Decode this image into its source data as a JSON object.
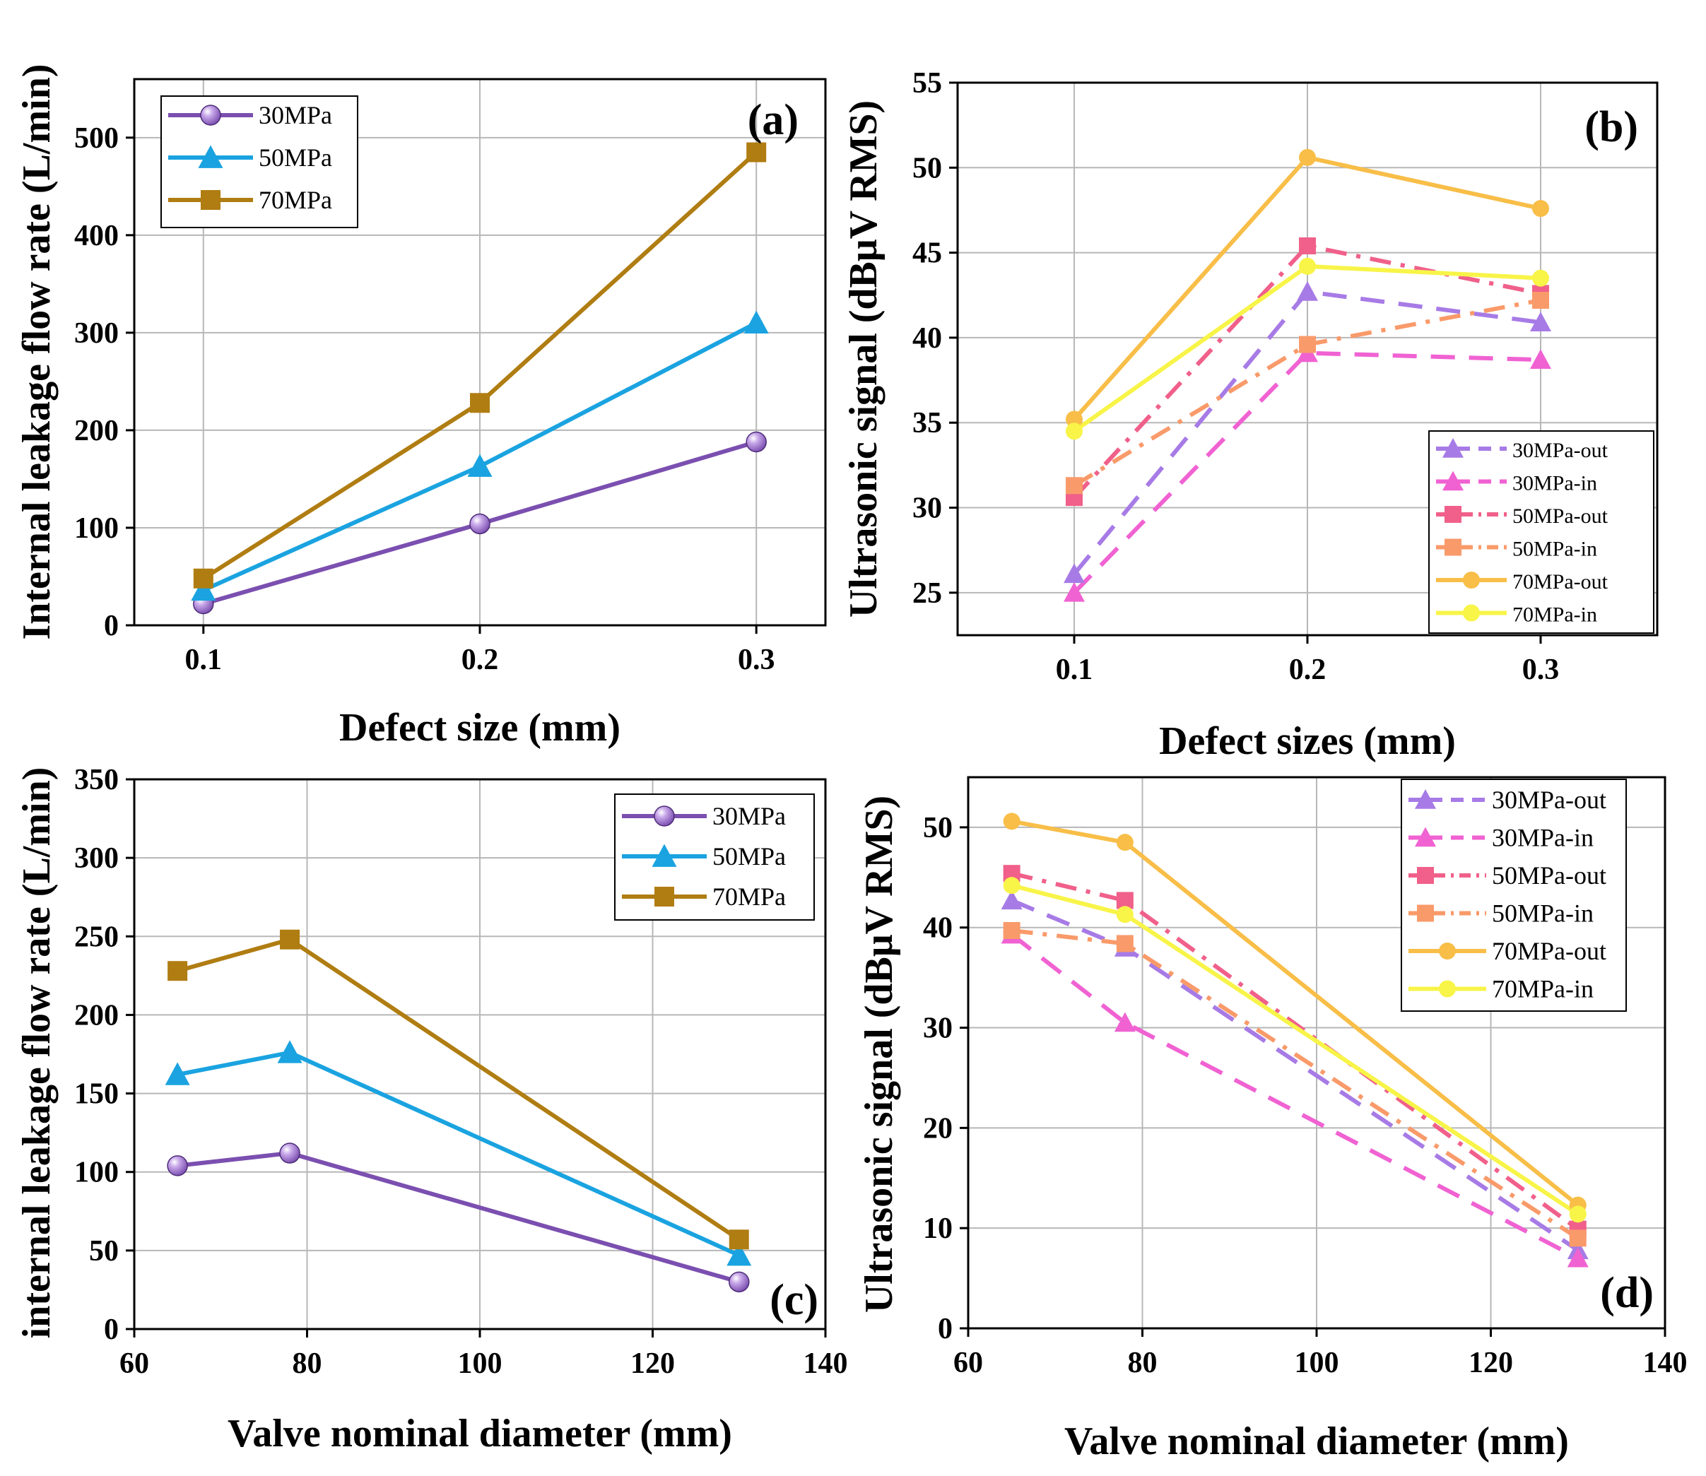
{
  "figure": {
    "background": "#ffffff"
  },
  "series_styles": {
    "30MPa": {
      "color": "#7b4fb0",
      "marker": "sphere",
      "dash": "solid"
    },
    "50MPa": {
      "color": "#1aa3e0",
      "marker": "triangle",
      "dash": "solid"
    },
    "70MPa": {
      "color": "#b07d12",
      "marker": "square",
      "dash": "solid"
    },
    "30MPa-out": {
      "color": "#a77be6",
      "marker": "triangle",
      "dash": "dash"
    },
    "30MPa-in": {
      "color": "#f062d2",
      "marker": "triangle",
      "dash": "dash"
    },
    "50MPa-out": {
      "color": "#f0608a",
      "marker": "square",
      "dash": "dashdot"
    },
    "50MPa-in": {
      "color": "#f99a6a",
      "marker": "square",
      "dash": "dashdot"
    },
    "70MPa-out": {
      "color": "#f8be48",
      "marker": "circle",
      "dash": "solid"
    },
    "70MPa-in": {
      "color": "#f8f448",
      "marker": "circle",
      "dash": "solid"
    }
  },
  "chart_data": [
    {
      "id": "a",
      "type": "line",
      "panel_label": "(a)",
      "xlabel": "Defect size (mm)",
      "ylabel": "Internal leakage flow rate (L/min)",
      "x": [
        0.1,
        0.2,
        0.3
      ],
      "xlim": [
        0.075,
        0.325
      ],
      "ylim": [
        0,
        560
      ],
      "xticks": [
        0.1,
        0.2,
        0.3
      ],
      "xtick_labels": [
        "0.1",
        "0.2",
        "0.3"
      ],
      "yticks": [
        0,
        100,
        200,
        300,
        400,
        500
      ],
      "ytick_labels": [
        "0",
        "100",
        "200",
        "300",
        "400",
        "500"
      ],
      "grid": true,
      "legend": "top-left",
      "series": [
        {
          "name": "30MPa",
          "values": [
            22,
            104,
            188
          ]
        },
        {
          "name": "50MPa",
          "values": [
            36,
            163,
            310
          ]
        },
        {
          "name": "70MPa",
          "values": [
            48,
            228,
            485
          ]
        }
      ]
    },
    {
      "id": "b",
      "type": "line",
      "panel_label": "(b)",
      "xlabel": "Defect sizes (mm)",
      "ylabel": "Ultrasonic signal (dBμV RMS)",
      "x": [
        0.1,
        0.2,
        0.3
      ],
      "xlim": [
        0.05,
        0.35
      ],
      "ylim": [
        22.5,
        55
      ],
      "xticks": [
        0.1,
        0.2,
        0.3
      ],
      "xtick_labels": [
        "0.1",
        "0.2",
        "0.3"
      ],
      "yticks": [
        25,
        30,
        35,
        40,
        45,
        50,
        55
      ],
      "ytick_labels": [
        "25",
        "30",
        "35",
        "40",
        "45",
        "50",
        "55"
      ],
      "grid": true,
      "legend": "bottom-right",
      "series": [
        {
          "name": "30MPa-out",
          "values": [
            26.1,
            42.7,
            40.9
          ]
        },
        {
          "name": "30MPa-in",
          "values": [
            25.0,
            39.1,
            38.7
          ]
        },
        {
          "name": "50MPa-out",
          "values": [
            30.6,
            45.4,
            42.6
          ]
        },
        {
          "name": "50MPa-in",
          "values": [
            31.3,
            39.6,
            42.2
          ]
        },
        {
          "name": "70MPa-out",
          "values": [
            35.2,
            50.6,
            47.6
          ]
        },
        {
          "name": "70MPa-in",
          "values": [
            34.5,
            44.2,
            43.5
          ]
        }
      ]
    },
    {
      "id": "c",
      "type": "line",
      "panel_label": "(c)",
      "xlabel": "Valve nominal diameter (mm)",
      "ylabel": "internal leakage flow rate (L/min)",
      "x": [
        65,
        78,
        130
      ],
      "xlim": [
        60,
        140
      ],
      "ylim": [
        0,
        350
      ],
      "xticks": [
        60,
        80,
        100,
        120,
        140
      ],
      "xtick_labels": [
        "60",
        "80",
        "100",
        "120",
        "140"
      ],
      "yticks": [
        0,
        50,
        100,
        150,
        200,
        250,
        300,
        350
      ],
      "ytick_labels": [
        "0",
        "50",
        "100",
        "150",
        "200",
        "250",
        "300",
        "350"
      ],
      "grid": true,
      "legend": "top-right",
      "series": [
        {
          "name": "30MPa",
          "values": [
            104,
            112,
            30
          ]
        },
        {
          "name": "50MPa",
          "values": [
            162,
            176,
            47
          ]
        },
        {
          "name": "70MPa",
          "values": [
            228,
            248,
            57
          ]
        }
      ]
    },
    {
      "id": "d",
      "type": "line",
      "panel_label": "(d)",
      "xlabel": "Valve nominal diameter (mm)",
      "ylabel": "Ultrasonic signal (dBμV RMS)",
      "x": [
        65,
        78,
        130
      ],
      "xlim": [
        60,
        140
      ],
      "ylim": [
        0,
        55
      ],
      "xticks": [
        60,
        80,
        100,
        120,
        140
      ],
      "xtick_labels": [
        "60",
        "80",
        "100",
        "120",
        "140"
      ],
      "yticks": [
        0,
        10,
        20,
        30,
        40,
        50
      ],
      "ytick_labels": [
        "0",
        "10",
        "20",
        "30",
        "40",
        "50"
      ],
      "grid": true,
      "legend": "top-right",
      "series": [
        {
          "name": "30MPa-out",
          "values": [
            42.7,
            38.0,
            7.8
          ]
        },
        {
          "name": "30MPa-in",
          "values": [
            39.3,
            30.5,
            7.0
          ]
        },
        {
          "name": "50MPa-out",
          "values": [
            45.4,
            42.7,
            9.9
          ]
        },
        {
          "name": "50MPa-in",
          "values": [
            39.7,
            38.4,
            9.0
          ]
        },
        {
          "name": "70MPa-out",
          "values": [
            50.6,
            48.5,
            12.3
          ]
        },
        {
          "name": "70MPa-in",
          "values": [
            44.2,
            41.3,
            11.4
          ]
        }
      ]
    }
  ]
}
